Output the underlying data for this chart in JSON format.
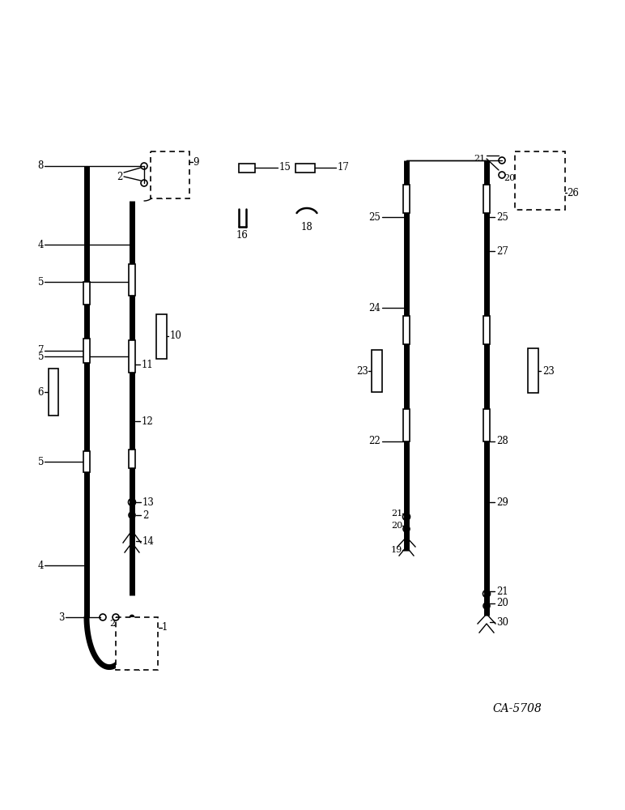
{
  "bg_color": "#ffffff",
  "line_color": "#000000",
  "fig_width": 7.72,
  "fig_height": 10.0,
  "dpi": 100,
  "watermark": "CA-5708"
}
